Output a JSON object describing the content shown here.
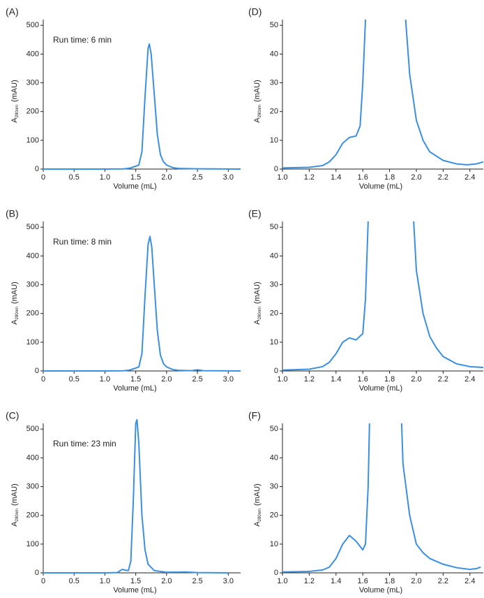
{
  "chart_data": [
    {
      "type": "line",
      "panel": "(A)",
      "annotation": "Run time: 6 min",
      "xlabel": "Volume (mL)",
      "ylabel": "A",
      "ylabel_sub": "280nm",
      "ylabel_unit": "(mAU)",
      "x": [
        0,
        0.5,
        1.0,
        1.3,
        1.4,
        1.5,
        1.55,
        1.6,
        1.65,
        1.7,
        1.72,
        1.75,
        1.8,
        1.85,
        1.9,
        1.95,
        2.0,
        2.1,
        2.2,
        2.5,
        3.2
      ],
      "values": [
        0,
        0,
        0,
        0.5,
        3,
        10,
        14,
        60,
        250,
        420,
        435,
        400,
        260,
        120,
        50,
        25,
        14,
        5,
        2,
        1,
        0
      ],
      "color": "#3b8fe0",
      "xlim": [
        0,
        3.2
      ],
      "ylim": [
        0,
        520
      ],
      "xticks": [
        0,
        0.5,
        {
          "value": 1,
          "label": "1.0"
        },
        1.5,
        {
          "value": 2,
          "label": "2.0"
        },
        2.5,
        {
          "value": 3,
          "label": "3.0"
        }
      ],
      "yticks": [
        0,
        100,
        200,
        300,
        400,
        500
      ]
    },
    {
      "type": "line",
      "panel": "(B)",
      "annotation": "Run time: 8 min",
      "xlabel": "Volume (mL)",
      "ylabel": "A",
      "ylabel_sub": "280nm",
      "ylabel_unit": "(mAU)",
      "x": [
        0,
        0.5,
        1.0,
        1.3,
        1.4,
        1.5,
        1.55,
        1.6,
        1.65,
        1.7,
        1.73,
        1.76,
        1.8,
        1.85,
        1.9,
        1.95,
        2.0,
        2.1,
        2.2,
        2.4,
        2.5,
        2.6,
        3.2
      ],
      "values": [
        0,
        0,
        0,
        0.5,
        3,
        10,
        14,
        60,
        260,
        440,
        468,
        430,
        300,
        140,
        55,
        25,
        14,
        5,
        2,
        1,
        4,
        1,
        0
      ],
      "color": "#3b8fe0",
      "xlim": [
        0,
        3.2
      ],
      "ylim": [
        0,
        520
      ],
      "xticks": [
        0,
        0.5,
        {
          "value": 1,
          "label": "1.0"
        },
        1.5,
        {
          "value": 2,
          "label": "2.0"
        },
        2.5,
        {
          "value": 3,
          "label": "3.0"
        }
      ],
      "yticks": [
        0,
        100,
        200,
        300,
        400,
        500
      ]
    },
    {
      "type": "line",
      "panel": "(C)",
      "annotation": "Run time: 23 min",
      "xlabel": "Volume (mL)",
      "ylabel": "A",
      "ylabel_sub": "280nm",
      "ylabel_unit": "(mAU)",
      "x": [
        0,
        1.0,
        1.2,
        1.28,
        1.32,
        1.38,
        1.42,
        1.46,
        1.5,
        1.52,
        1.55,
        1.6,
        1.65,
        1.7,
        1.8,
        2.0,
        2.3,
        2.5,
        3.0
      ],
      "values": [
        0,
        0,
        1,
        12,
        10,
        8,
        40,
        250,
        520,
        533,
        450,
        200,
        80,
        30,
        8,
        2,
        3,
        1,
        0
      ],
      "color": "#3b8fe0",
      "xlim": [
        0,
        3.2
      ],
      "ylim": [
        0,
        520
      ],
      "xticks": [
        0,
        0.5,
        {
          "value": 1,
          "label": "1.0"
        },
        1.5,
        {
          "value": 2,
          "label": "2.0"
        },
        2.5,
        {
          "value": 3,
          "label": "3.0"
        }
      ],
      "yticks": [
        0,
        100,
        200,
        300,
        400,
        500
      ]
    },
    {
      "type": "line",
      "panel": "(D)",
      "xlabel": "Volume (mL)",
      "ylabel": "A",
      "ylabel_sub": "280nm",
      "ylabel_unit": "(mAU)",
      "x": [
        1.0,
        1.2,
        1.3,
        1.35,
        1.4,
        1.45,
        1.5,
        1.55,
        1.58,
        1.6,
        1.62,
        1.7,
        1.92,
        1.95,
        2.0,
        2.05,
        2.1,
        2.2,
        2.3,
        2.38,
        2.45,
        2.5
      ],
      "values": [
        0.4,
        0.6,
        1.2,
        2.5,
        5,
        9,
        11,
        11.5,
        15,
        30,
        52,
        null,
        52,
        33,
        17,
        10,
        6,
        3,
        1.8,
        1.5,
        1.8,
        2.5
      ],
      "color": "#3b8fe0",
      "xlim": [
        1.0,
        2.5
      ],
      "ylim": [
        0,
        52
      ],
      "xticks": [
        {
          "value": 1,
          "label": "1.0"
        },
        1.2,
        1.4,
        1.6,
        1.8,
        {
          "value": 2,
          "label": "2.0"
        },
        2.2,
        2.4
      ],
      "yticks": [
        0,
        10,
        20,
        30,
        40,
        50
      ]
    },
    {
      "type": "line",
      "panel": "(E)",
      "xlabel": "Volume (mL)",
      "ylabel": "A",
      "ylabel_sub": "280nm",
      "ylabel_unit": "(mAU)",
      "x": [
        1.0,
        1.2,
        1.3,
        1.35,
        1.4,
        1.45,
        1.5,
        1.55,
        1.6,
        1.62,
        1.64,
        1.8,
        1.98,
        2.0,
        2.05,
        2.1,
        2.15,
        2.2,
        2.3,
        2.4,
        2.5
      ],
      "values": [
        0.3,
        0.6,
        1.5,
        3,
        6,
        10,
        11.5,
        10.8,
        13,
        25,
        52,
        null,
        52,
        35,
        20,
        12,
        8,
        5,
        2.5,
        1.5,
        1.2
      ],
      "color": "#3b8fe0",
      "xlim": [
        1.0,
        2.5
      ],
      "ylim": [
        0,
        52
      ],
      "xticks": [
        {
          "value": 1,
          "label": "1.0"
        },
        1.2,
        1.4,
        1.6,
        1.8,
        {
          "value": 2,
          "label": "2.0"
        },
        2.2,
        2.4
      ],
      "yticks": [
        0,
        10,
        20,
        30,
        40,
        50
      ]
    },
    {
      "type": "line",
      "panel": "(F)",
      "xlabel": "Volume (mL)",
      "ylabel": "A",
      "ylabel_sub": "280nm",
      "ylabel_unit": "(mAU)",
      "x": [
        1.0,
        1.2,
        1.3,
        1.35,
        1.4,
        1.45,
        1.5,
        1.55,
        1.6,
        1.62,
        1.64,
        1.65,
        1.75,
        1.89,
        1.9,
        1.95,
        2.0,
        2.05,
        2.1,
        2.2,
        2.3,
        2.4,
        2.45,
        2.48
      ],
      "values": [
        0.3,
        0.5,
        1,
        2,
        5,
        10,
        13,
        11,
        8,
        10,
        30,
        52,
        null,
        52,
        38,
        20,
        10,
        7,
        5,
        3,
        1.8,
        1.2,
        1.5,
        2
      ],
      "color": "#3b8fe0",
      "xlim": [
        1.0,
        2.5
      ],
      "ylim": [
        0,
        52
      ],
      "xticks": [
        {
          "value": 1,
          "label": "1.0"
        },
        1.2,
        1.4,
        1.6,
        1.8,
        {
          "value": 2,
          "label": "2.0"
        },
        2.2,
        2.4
      ],
      "yticks": [
        0,
        10,
        20,
        30,
        40,
        50
      ]
    }
  ]
}
